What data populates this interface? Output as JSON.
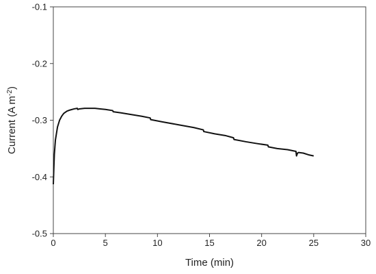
{
  "colors": {
    "line": "#111111",
    "axis": "#444444",
    "background": "#ffffff"
  },
  "chart_data": {
    "type": "line",
    "title": "",
    "xlabel": "Time (min)",
    "ylabel": "Current (A m",
    "ylabel_superscript": "-2",
    "ylabel_close": ")",
    "xlim": [
      0,
      30
    ],
    "ylim": [
      -0.5,
      -0.1
    ],
    "xticks": [
      0,
      5,
      10,
      15,
      20,
      25,
      30
    ],
    "yticks": [
      -0.5,
      -0.4,
      -0.3,
      -0.2,
      -0.1
    ],
    "xtick_labels": [
      "0",
      "5",
      "10",
      "15",
      "20",
      "25",
      "30"
    ],
    "ytick_labels": [
      "-0.5",
      "-0.4",
      "-0.3",
      "-0.2",
      "-0.1"
    ],
    "grid": false,
    "legend": "none",
    "series": [
      {
        "x": [
          0.0,
          0.05,
          0.1,
          0.2,
          0.4,
          0.6,
          0.8,
          1.0,
          1.3,
          1.6,
          2.0,
          2.3,
          2.35,
          2.5,
          3.0,
          3.5,
          4.0,
          4.5,
          5.0,
          5.7,
          5.75,
          6.5,
          7.5,
          8.5,
          9.3,
          9.35,
          10.5,
          12.0,
          13.5,
          14.4,
          14.45,
          15.5,
          16.5,
          17.3,
          17.35,
          18.5,
          19.5,
          20.6,
          20.65,
          21.5,
          22.5,
          23.3,
          23.35,
          23.45,
          23.55,
          24.0,
          24.5,
          25.0
        ],
        "y": [
          -0.413,
          -0.385,
          -0.36,
          -0.335,
          -0.312,
          -0.3,
          -0.293,
          -0.288,
          -0.284,
          -0.282,
          -0.28,
          -0.279,
          -0.281,
          -0.28,
          -0.279,
          -0.279,
          -0.279,
          -0.28,
          -0.281,
          -0.283,
          -0.285,
          -0.287,
          -0.29,
          -0.293,
          -0.296,
          -0.299,
          -0.303,
          -0.308,
          -0.313,
          -0.317,
          -0.32,
          -0.324,
          -0.327,
          -0.331,
          -0.334,
          -0.338,
          -0.341,
          -0.344,
          -0.347,
          -0.35,
          -0.352,
          -0.355,
          -0.363,
          -0.358,
          -0.357,
          -0.358,
          -0.361,
          -0.363
        ]
      }
    ]
  }
}
